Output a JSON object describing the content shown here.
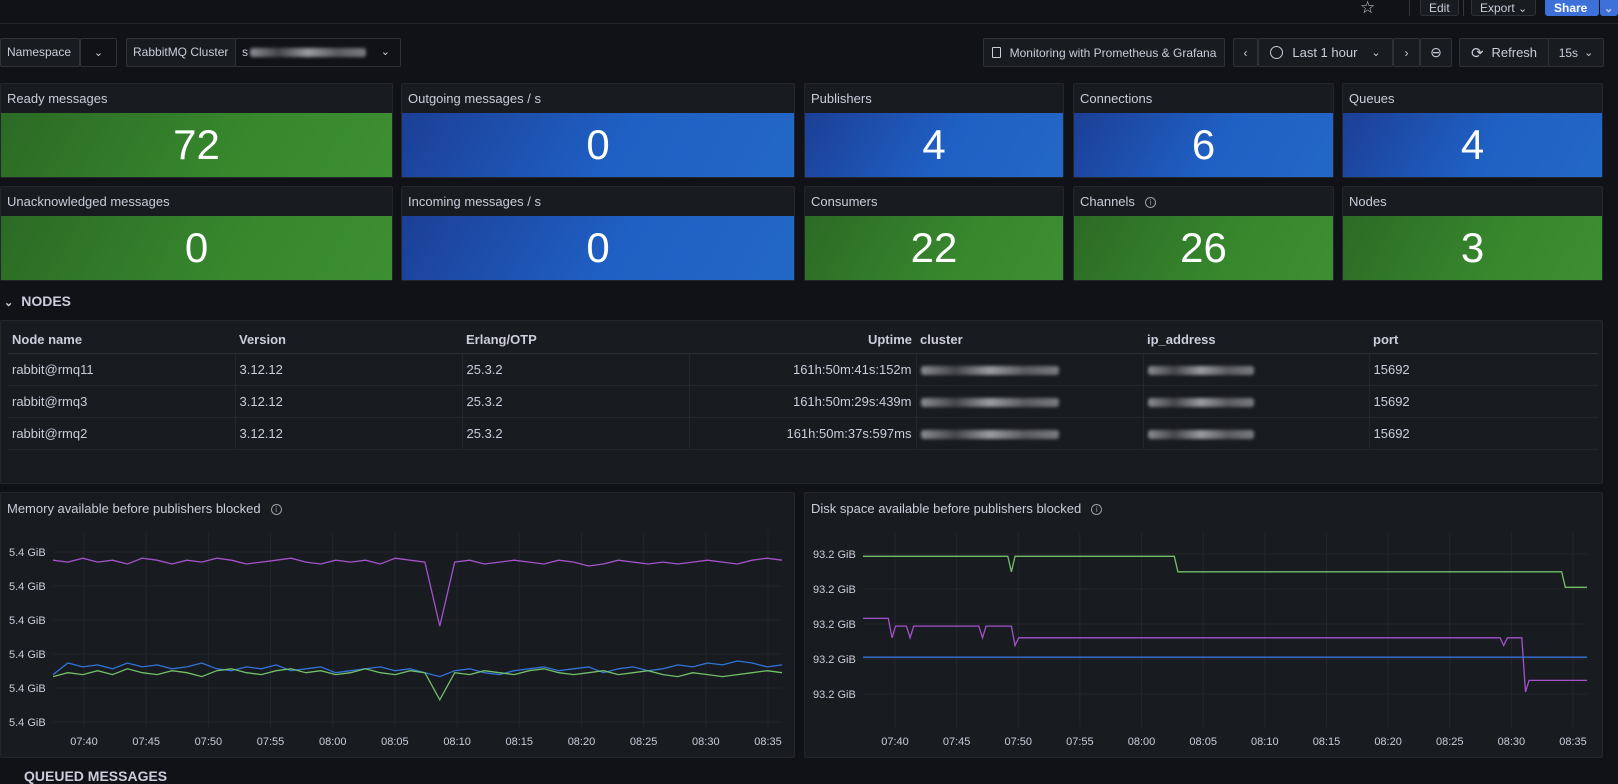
{
  "toolbar": {
    "edit_label": "Edit",
    "export_label": "Export",
    "share_label": "Share"
  },
  "variables": {
    "namespace_label": "Namespace",
    "cluster_label": "RabbitMQ Cluster",
    "cluster_value": "s"
  },
  "controls": {
    "link_label": "Monitoring with Prometheus & Grafana",
    "time_range": "Last 1 hour",
    "refresh_label": "Refresh",
    "refresh_interval": "15s"
  },
  "stats": [
    {
      "title": "Ready messages",
      "value": "72",
      "color": "#37872d"
    },
    {
      "title": "Outgoing messages / s",
      "value": "0",
      "color": "#1f60c4"
    },
    {
      "title": "Publishers",
      "value": "4",
      "color": "#1f60c4"
    },
    {
      "title": "Connections",
      "value": "6",
      "color": "#1f60c4"
    },
    {
      "title": "Queues",
      "value": "4",
      "color": "#1f60c4"
    },
    {
      "title": "Unacknowledged messages",
      "value": "0",
      "color": "#37872d"
    },
    {
      "title": "Incoming messages / s",
      "value": "0",
      "color": "#1f60c4"
    },
    {
      "title": "Consumers",
      "value": "22",
      "color": "#37872d"
    },
    {
      "title": "Channels",
      "value": "26",
      "color": "#37872d"
    },
    {
      "title": "Nodes",
      "value": "3",
      "color": "#37872d"
    }
  ],
  "nodes_section": {
    "title": "NODES",
    "columns": [
      "Node name",
      "Version",
      "Erlang/OTP",
      "Uptime",
      "cluster",
      "ip_address",
      "port"
    ],
    "rows": [
      {
        "node": "rabbit@rmq11",
        "version": "3.12.12",
        "erlang": "25.3.2",
        "uptime": "161h:50m:41s:152m",
        "port": "15692"
      },
      {
        "node": "rabbit@rmq3",
        "version": "3.12.12",
        "erlang": "25.3.2",
        "uptime": "161h:50m:29s:439m",
        "port": "15692"
      },
      {
        "node": "rabbit@rmq2",
        "version": "3.12.12",
        "erlang": "25.3.2",
        "uptime": "161h:50m:37s:597ms",
        "port": "15692"
      }
    ]
  },
  "chart_data": [
    {
      "type": "line",
      "title": "Memory available before publishers blocked",
      "y_ticks": [
        "5.4 GiB",
        "5.4 GiB",
        "5.4 GiB",
        "5.4 GiB",
        "5.4 GiB",
        "5.4 GiB"
      ],
      "x_ticks": [
        "07:40",
        "07:45",
        "07:50",
        "07:55",
        "08:00",
        "08:05",
        "08:10",
        "08:15",
        "08:20",
        "08:25",
        "08:30",
        "08:35"
      ],
      "series": [
        {
          "name": "purple",
          "color": "#a352cc",
          "values": [
            0.86,
            0.85,
            0.87,
            0.85,
            0.86,
            0.84,
            0.87,
            0.86,
            0.84,
            0.86,
            0.85,
            0.87,
            0.86,
            0.84,
            0.85,
            0.86,
            0.87,
            0.85,
            0.84,
            0.86,
            0.85,
            0.86,
            0.84,
            0.87,
            0.86,
            0.85,
            0.52,
            0.85,
            0.86,
            0.84,
            0.85,
            0.86,
            0.85,
            0.84,
            0.86,
            0.85,
            0.83,
            0.84,
            0.86,
            0.85,
            0.84,
            0.85,
            0.84,
            0.85,
            0.86,
            0.85,
            0.84,
            0.86,
            0.87,
            0.86
          ]
        },
        {
          "name": "blue",
          "color": "#3274d9",
          "values": [
            0.27,
            0.33,
            0.31,
            0.32,
            0.3,
            0.33,
            0.31,
            0.32,
            0.3,
            0.31,
            0.33,
            0.3,
            0.29,
            0.31,
            0.3,
            0.32,
            0.29,
            0.3,
            0.31,
            0.28,
            0.29,
            0.3,
            0.31,
            0.29,
            0.3,
            0.28,
            0.26,
            0.29,
            0.3,
            0.28,
            0.27,
            0.29,
            0.3,
            0.31,
            0.29,
            0.3,
            0.31,
            0.28,
            0.3,
            0.31,
            0.29,
            0.3,
            0.32,
            0.31,
            0.33,
            0.32,
            0.34,
            0.33,
            0.31,
            0.32
          ]
        },
        {
          "name": "green",
          "color": "#73bf69",
          "values": [
            0.26,
            0.28,
            0.27,
            0.29,
            0.27,
            0.3,
            0.28,
            0.27,
            0.29,
            0.28,
            0.26,
            0.29,
            0.3,
            0.28,
            0.27,
            0.29,
            0.3,
            0.28,
            0.29,
            0.27,
            0.28,
            0.3,
            0.28,
            0.27,
            0.29,
            0.28,
            0.14,
            0.28,
            0.27,
            0.29,
            0.28,
            0.27,
            0.29,
            0.3,
            0.28,
            0.27,
            0.28,
            0.29,
            0.27,
            0.28,
            0.29,
            0.27,
            0.26,
            0.28,
            0.27,
            0.26,
            0.27,
            0.28,
            0.29,
            0.28
          ]
        }
      ]
    },
    {
      "type": "line",
      "title": "Disk space available before publishers blocked",
      "y_ticks": [
        "93.2 GiB",
        "93.2 GiB",
        "93.2 GiB",
        "93.2 GiB",
        "93.2 GiB"
      ],
      "x_ticks": [
        "07:40",
        "07:45",
        "07:50",
        "07:55",
        "08:00",
        "08:05",
        "08:10",
        "08:15",
        "08:20",
        "08:25",
        "08:30",
        "08:35"
      ],
      "series": [
        {
          "name": "green",
          "color": "#73bf69",
          "points": [
            [
              0,
              0.88
            ],
            [
              0.2,
              0.88
            ],
            [
              0.205,
              0.8
            ],
            [
              0.21,
              0.88
            ],
            [
              0.43,
              0.88
            ],
            [
              0.435,
              0.8
            ],
            [
              0.965,
              0.8
            ],
            [
              0.97,
              0.72
            ],
            [
              1,
              0.72
            ]
          ]
        },
        {
          "name": "purple",
          "color": "#a352cc",
          "points": [
            [
              0,
              0.56
            ],
            [
              0.035,
              0.56
            ],
            [
              0.04,
              0.46
            ],
            [
              0.045,
              0.52
            ],
            [
              0.06,
              0.52
            ],
            [
              0.065,
              0.46
            ],
            [
              0.07,
              0.52
            ],
            [
              0.16,
              0.52
            ],
            [
              0.165,
              0.46
            ],
            [
              0.17,
              0.52
            ],
            [
              0.205,
              0.52
            ],
            [
              0.21,
              0.42
            ],
            [
              0.215,
              0.46
            ],
            [
              0.88,
              0.46
            ],
            [
              0.885,
              0.42
            ],
            [
              0.89,
              0.46
            ],
            [
              0.91,
              0.46
            ],
            [
              0.915,
              0.18
            ],
            [
              0.92,
              0.24
            ],
            [
              1,
              0.24
            ]
          ]
        },
        {
          "name": "blue",
          "color": "#3274d9",
          "points": [
            [
              0,
              0.36
            ],
            [
              1,
              0.36
            ]
          ]
        }
      ]
    }
  ],
  "bottom_section": {
    "title": "QUEUED MESSAGES"
  }
}
